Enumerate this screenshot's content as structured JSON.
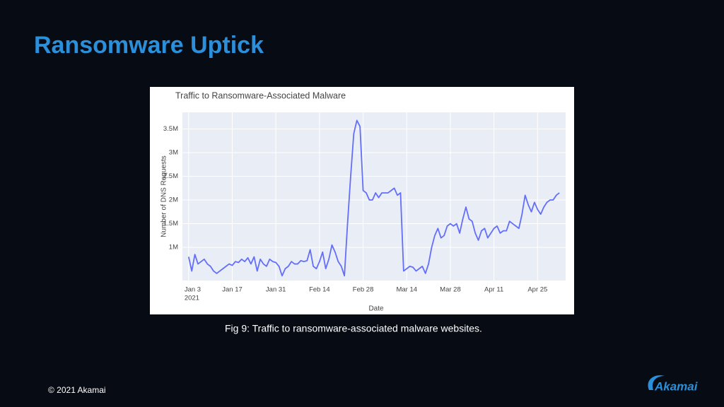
{
  "slide": {
    "title": "Ransomware Uptick",
    "caption": "Fig 9: Traffic to ransomware-associated malware websites.",
    "footer": "© 2021 Akamai",
    "logo": "Akamai"
  },
  "chart_data": {
    "type": "line",
    "title": "Traffic to Ransomware-Associated Malware",
    "x_label": "Date",
    "y_label": "Number of DNS Requests",
    "x": [
      "2021-01-03",
      "2021-01-04",
      "2021-01-05",
      "2021-01-06",
      "2021-01-07",
      "2021-01-08",
      "2021-01-09",
      "2021-01-10",
      "2021-01-11",
      "2021-01-12",
      "2021-01-13",
      "2021-01-14",
      "2021-01-15",
      "2021-01-16",
      "2021-01-17",
      "2021-01-18",
      "2021-01-19",
      "2021-01-20",
      "2021-01-21",
      "2021-01-22",
      "2021-01-23",
      "2021-01-24",
      "2021-01-25",
      "2021-01-26",
      "2021-01-27",
      "2021-01-28",
      "2021-01-29",
      "2021-01-30",
      "2021-01-31",
      "2021-02-01",
      "2021-02-02",
      "2021-02-03",
      "2021-02-04",
      "2021-02-05",
      "2021-02-06",
      "2021-02-07",
      "2021-02-08",
      "2021-02-09",
      "2021-02-10",
      "2021-02-11",
      "2021-02-12",
      "2021-02-13",
      "2021-02-14",
      "2021-02-15",
      "2021-02-16",
      "2021-02-17",
      "2021-02-18",
      "2021-02-19",
      "2021-02-20",
      "2021-02-21",
      "2021-02-22",
      "2021-02-23",
      "2021-02-24",
      "2021-02-25",
      "2021-02-26",
      "2021-02-27",
      "2021-02-28",
      "2021-03-01",
      "2021-03-02",
      "2021-03-03",
      "2021-03-04",
      "2021-03-05",
      "2021-03-06",
      "2021-03-07",
      "2021-03-08",
      "2021-03-09",
      "2021-03-10",
      "2021-03-11",
      "2021-03-12",
      "2021-03-13",
      "2021-03-14",
      "2021-03-15",
      "2021-03-16",
      "2021-03-17",
      "2021-03-18",
      "2021-03-19",
      "2021-03-20",
      "2021-03-21",
      "2021-03-22",
      "2021-03-23",
      "2021-03-24",
      "2021-03-25",
      "2021-03-26",
      "2021-03-27",
      "2021-03-28",
      "2021-03-29",
      "2021-03-30",
      "2021-03-31",
      "2021-04-01",
      "2021-04-02",
      "2021-04-03",
      "2021-04-04",
      "2021-04-05",
      "2021-04-06",
      "2021-04-07",
      "2021-04-08",
      "2021-04-09",
      "2021-04-10",
      "2021-04-11",
      "2021-04-12",
      "2021-04-13",
      "2021-04-14",
      "2021-04-15",
      "2021-04-16",
      "2021-04-17",
      "2021-04-18",
      "2021-04-19",
      "2021-04-20",
      "2021-04-21",
      "2021-04-22",
      "2021-04-23",
      "2021-04-24",
      "2021-04-25",
      "2021-04-26",
      "2021-04-27",
      "2021-04-28",
      "2021-04-29",
      "2021-04-30",
      "2021-05-01",
      "2021-05-02"
    ],
    "series": [
      {
        "color": "#636efa",
        "values": [
          800000,
          500000,
          850000,
          650000,
          700000,
          750000,
          650000,
          600000,
          500000,
          450000,
          500000,
          550000,
          600000,
          650000,
          620000,
          700000,
          680000,
          750000,
          700000,
          780000,
          650000,
          800000,
          500000,
          750000,
          650000,
          600000,
          750000,
          700000,
          680000,
          600000,
          400000,
          550000,
          600000,
          700000,
          650000,
          650000,
          720000,
          700000,
          720000,
          950000,
          600000,
          550000,
          700000,
          900000,
          550000,
          750000,
          1050000,
          900000,
          700000,
          600000,
          400000,
          1500000,
          2500000,
          3400000,
          3680000,
          3550000,
          2200000,
          2150000,
          2000000,
          2000000,
          2150000,
          2050000,
          2150000,
          2150000,
          2150000,
          2200000,
          2250000,
          2100000,
          2150000,
          500000,
          550000,
          600000,
          580000,
          500000,
          550000,
          600000,
          450000,
          650000,
          1000000,
          1250000,
          1400000,
          1200000,
          1250000,
          1450000,
          1500000,
          1450000,
          1500000,
          1300000,
          1600000,
          1850000,
          1600000,
          1550000,
          1300000,
          1150000,
          1350000,
          1400000,
          1200000,
          1300000,
          1400000,
          1450000,
          1300000,
          1350000,
          1350000,
          1550000,
          1500000,
          1450000,
          1400000,
          1700000,
          2100000,
          1900000,
          1750000,
          1950000,
          1800000,
          1700000,
          1850000,
          1950000,
          2000000,
          2000000,
          2100000,
          2150000
        ]
      }
    ],
    "xlim": [
      "2021-01-01",
      "2021-05-04"
    ],
    "xticks": [
      {
        "value": "2021-01-03",
        "label": "Jan 3"
      },
      {
        "value": "2021-01-17",
        "label": "Jan 17"
      },
      {
        "value": "2021-01-31",
        "label": "Jan 31"
      },
      {
        "value": "2021-02-14",
        "label": "Feb 14"
      },
      {
        "value": "2021-02-28",
        "label": "Feb 28"
      },
      {
        "value": "2021-03-14",
        "label": "Mar 14"
      },
      {
        "value": "2021-03-28",
        "label": "Mar 28"
      },
      {
        "value": "2021-04-11",
        "label": "Apr 11"
      },
      {
        "value": "2021-04-25",
        "label": "Apr 25"
      }
    ],
    "xtick_sublabel": "2021",
    "ylim": [
      300000,
      3850000
    ],
    "yticks": [
      {
        "value": 1000000,
        "label": "1M"
      },
      {
        "value": 1500000,
        "label": "1.5M"
      },
      {
        "value": 2000000,
        "label": "2M"
      },
      {
        "value": 2500000,
        "label": "2.5M"
      },
      {
        "value": 3000000,
        "label": "3M"
      },
      {
        "value": 3500000,
        "label": "3.5M"
      }
    ],
    "grid": true
  }
}
